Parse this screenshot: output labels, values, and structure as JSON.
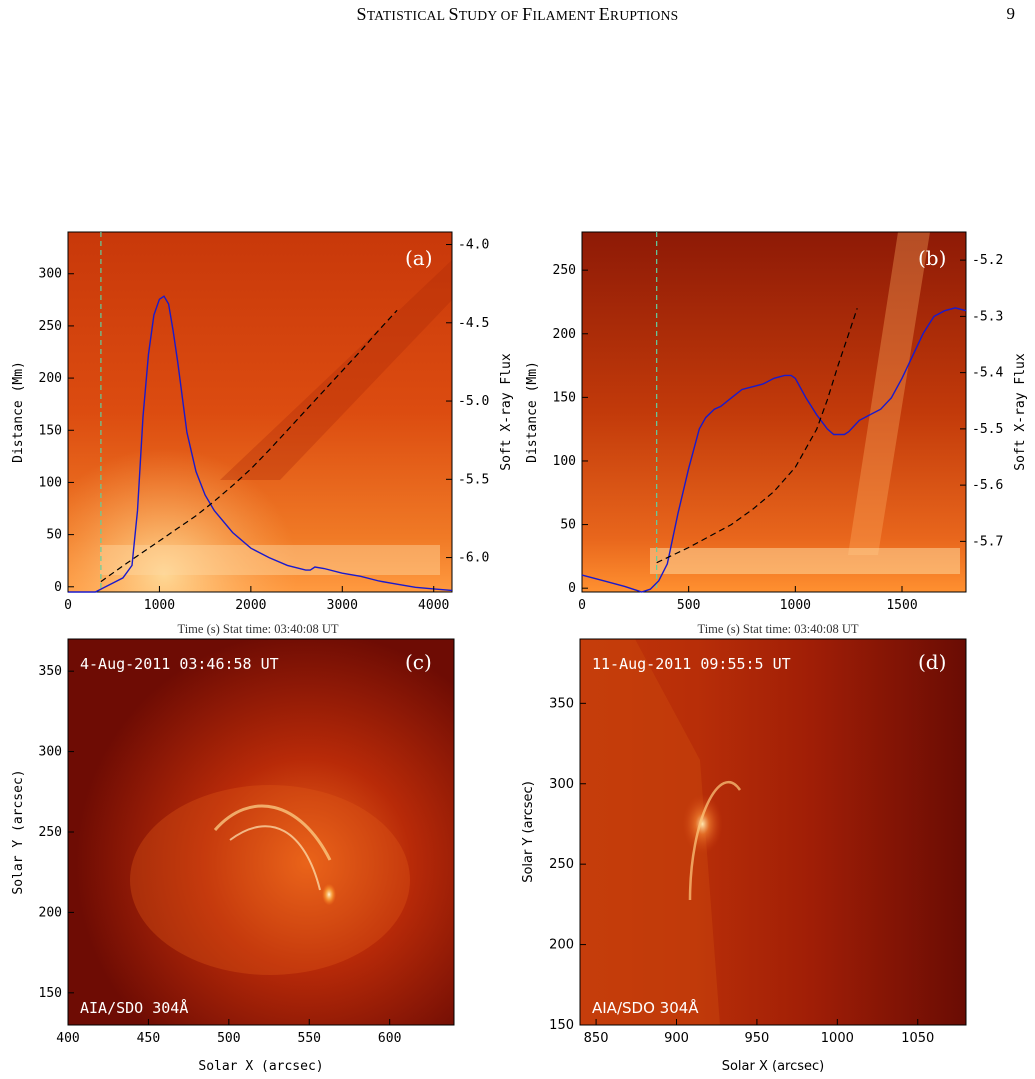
{
  "header": {
    "title_parts": [
      "S",
      "TATISTICAL ",
      "S",
      "TUDY OF ",
      "F",
      "ILAMENT ",
      "E",
      "RUPTIONS"
    ],
    "page_number": "9"
  },
  "colors": {
    "flux_curve": "#1a1acc",
    "trajectory": "#000000",
    "onset_marker": "#5fd0a0",
    "panel_dark": "#7a0e04",
    "panel_mid": "#d8420a",
    "panel_bright": "#ffe6a0"
  },
  "chart_data": [
    {
      "panel": "(a)",
      "type": "line",
      "caption": "Time (s) Stat time: 03:40:08 UT",
      "xlabel": "",
      "ylabel": "Distance (Mm)",
      "y2label": "Soft X-ray Flux",
      "xlim": [
        0,
        4200
      ],
      "ylim": [
        -5,
        340
      ],
      "y2lim": [
        -6.22,
        -3.92
      ],
      "xticks": [
        "0",
        "1000",
        "2000",
        "3000",
        "4000"
      ],
      "yticks": [
        "0",
        "50",
        "100",
        "150",
        "200",
        "250",
        "300"
      ],
      "y2ticks": [
        "-4.0",
        "-4.5",
        "-5.0",
        "-5.5",
        "-6.0"
      ],
      "onset_time": 360,
      "series": [
        {
          "x": [
            0,
            300,
            400,
            500,
            600,
            700,
            760,
            820,
            880,
            940,
            1000,
            1050,
            1100,
            1150,
            1200,
            1300,
            1400,
            1500,
            1600,
            1800,
            2000,
            2200,
            2400,
            2600,
            2650,
            2700,
            2800,
            3000,
            3200,
            3400,
            3600,
            3800,
            4000,
            4200
          ],
          "y": [
            -6.22,
            -6.22,
            -6.19,
            -6.16,
            -6.13,
            -6.05,
            -5.7,
            -5.1,
            -4.7,
            -4.45,
            -4.35,
            -4.33,
            -4.38,
            -4.55,
            -4.75,
            -5.2,
            -5.45,
            -5.6,
            -5.7,
            -5.84,
            -5.94,
            -6.0,
            -6.05,
            -6.08,
            -6.08,
            -6.06,
            -6.07,
            -6.1,
            -6.12,
            -6.15,
            -6.17,
            -6.19,
            -6.2,
            -6.21
          ]
        },
        {
          "x": [
            360,
            600,
            800,
            1000,
            1200,
            1400,
            1600,
            1800,
            2000,
            2200,
            2400,
            2600,
            2800,
            3000,
            3200,
            3400,
            3600
          ],
          "y": [
            5,
            20,
            32,
            44,
            56,
            68,
            82,
            97,
            113,
            131,
            150,
            169,
            188,
            207,
            226,
            246,
            265
          ]
        }
      ]
    },
    {
      "panel": "(b)",
      "type": "line",
      "caption": "Time (s) Stat time: 03:40:08 UT",
      "xlabel": "",
      "ylabel": "Distance (Mm)",
      "y2label": "Soft X-ray Flux",
      "xlim": [
        0,
        1800
      ],
      "ylim": [
        -3,
        280
      ],
      "y2lim": [
        -5.79,
        -5.15
      ],
      "xticks": [
        "0",
        "500",
        "1000",
        "1500"
      ],
      "yticks": [
        "0",
        "50",
        "100",
        "150",
        "200",
        "250"
      ],
      "y2ticks": [
        "-5.2",
        "-5.3",
        "-5.4",
        "-5.5",
        "-5.6",
        "-5.7"
      ],
      "onset_time": 350,
      "series": [
        {
          "x": [
            0,
            100,
            200,
            280,
            320,
            360,
            400,
            450,
            500,
            550,
            580,
            620,
            650,
            700,
            750,
            800,
            850,
            900,
            950,
            980,
            1000,
            1050,
            1100,
            1150,
            1180,
            1230,
            1250,
            1300,
            1350,
            1400,
            1450,
            1500,
            1550,
            1600,
            1650,
            1700,
            1750,
            1800
          ],
          "y": [
            -5.76,
            -5.77,
            -5.78,
            -5.79,
            -5.785,
            -5.77,
            -5.74,
            -5.65,
            -5.57,
            -5.5,
            -5.48,
            -5.465,
            -5.46,
            -5.445,
            -5.43,
            -5.425,
            -5.42,
            -5.41,
            -5.405,
            -5.405,
            -5.41,
            -5.445,
            -5.475,
            -5.5,
            -5.51,
            -5.51,
            -5.505,
            -5.485,
            -5.475,
            -5.465,
            -5.445,
            -5.41,
            -5.37,
            -5.33,
            -5.3,
            -5.29,
            -5.285,
            -5.29
          ]
        },
        {
          "x": [
            350,
            500,
            700,
            800,
            900,
            1000,
            1100,
            1150,
            1200,
            1250,
            1290
          ],
          "y": [
            20,
            32,
            50,
            62,
            76,
            95,
            125,
            148,
            175,
            200,
            220
          ]
        }
      ]
    },
    {
      "panel": "(c)",
      "type": "heatmap",
      "label": "4-Aug-2011 03:46:58 UT",
      "instrument": "AIA/SDO 304Å",
      "xlabel": "Solar X (arcsec)",
      "ylabel": "Solar Y (arcsec)",
      "xlim": [
        400,
        640
      ],
      "ylim": [
        130,
        370
      ],
      "xticks": [
        "400",
        "450",
        "500",
        "550",
        "600"
      ],
      "yticks": [
        "150",
        "200",
        "250",
        "300",
        "350"
      ]
    },
    {
      "panel": "(d)",
      "type": "heatmap",
      "label": "11-Aug-2011 09:55:5 UT",
      "instrument": "AIA/SDO 304Å",
      "xlabel": "Solar X (arcsec)",
      "ylabel": "Solar Y (arcsec)",
      "xlim": [
        840,
        1080
      ],
      "ylim": [
        150,
        390
      ],
      "xticks": [
        "850",
        "900",
        "950",
        "1000",
        "1050"
      ],
      "yticks": [
        "150",
        "200",
        "250",
        "300",
        "350"
      ]
    }
  ]
}
